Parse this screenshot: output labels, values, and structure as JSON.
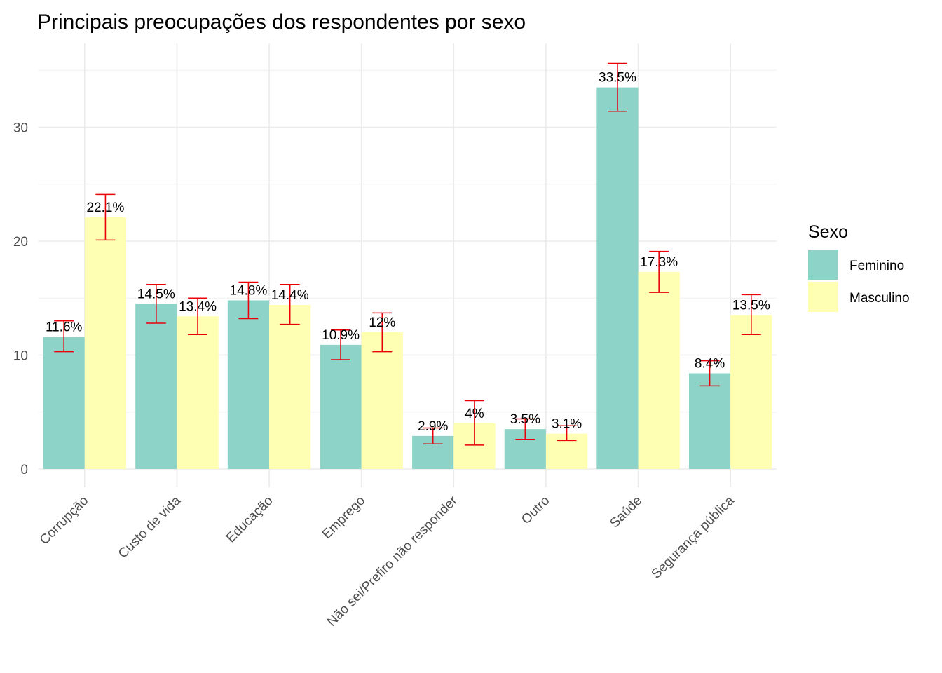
{
  "chart_data": {
    "type": "bar",
    "title": "Principais preocupações dos respondentes por sexo",
    "xlabel": "",
    "ylabel": "",
    "ylim": [
      0,
      36
    ],
    "yticks": [
      0,
      10,
      20,
      30
    ],
    "grid": true,
    "legend": {
      "title": "Sexo",
      "placement": "right"
    },
    "categories": [
      "Corrupção",
      "Custo de vida",
      "Educação",
      "Emprego",
      "Não sei/Prefiro não responder",
      "Outro",
      "Saúde",
      "Segurança pública"
    ],
    "series": [
      {
        "name": "Feminino",
        "color": "#8dd3c7",
        "values": [
          11.6,
          14.5,
          14.8,
          10.9,
          2.9,
          3.5,
          33.5,
          8.4
        ],
        "labels": [
          "11.6%",
          "14.5%",
          "14.8%",
          "10.9%",
          "2.9%",
          "3.5%",
          "33.5%",
          "8.4%"
        ],
        "err_low": [
          10.3,
          12.8,
          13.2,
          9.6,
          2.2,
          2.6,
          31.4,
          7.3
        ],
        "err_high": [
          13.0,
          16.2,
          16.4,
          12.2,
          3.6,
          4.4,
          35.6,
          9.5
        ]
      },
      {
        "name": "Masculino",
        "color": "#ffffb3",
        "values": [
          22.1,
          13.4,
          14.4,
          12.0,
          4.0,
          3.1,
          17.3,
          13.5
        ],
        "labels": [
          "22.1%",
          "13.4%",
          "14.4%",
          "12%",
          "4%",
          "3.1%",
          "17.3%",
          "13.5%"
        ],
        "err_low": [
          20.1,
          11.8,
          12.7,
          10.3,
          2.1,
          2.5,
          15.5,
          11.8
        ],
        "err_high": [
          24.1,
          15.0,
          16.2,
          13.7,
          6.0,
          3.8,
          19.1,
          15.3
        ]
      }
    ],
    "error_bar_color": "#e8000b"
  }
}
